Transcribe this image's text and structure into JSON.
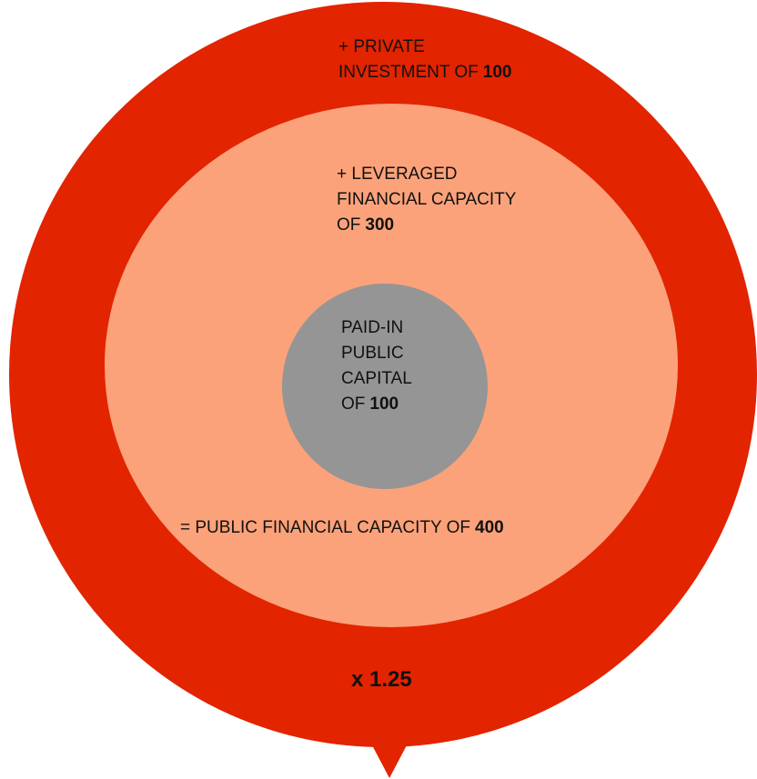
{
  "outer": {
    "lines": [
      {
        "text": "+ PRIVATE"
      },
      {
        "text": "INVESTMENT OF",
        "bold": "100"
      }
    ]
  },
  "middle": {
    "lines": [
      {
        "text": "+ LEVERAGED"
      },
      {
        "text": "FINANCIAL CAPACITY"
      },
      {
        "text": "OF",
        "bold": "300"
      }
    ]
  },
  "core": {
    "lines": [
      {
        "text": "PAID-IN"
      },
      {
        "text": "PUBLIC"
      },
      {
        "text": "CAPITAL"
      },
      {
        "text": "OF",
        "bold": "100"
      }
    ]
  },
  "total": {
    "text": "= PUBLIC FINANCIAL CAPACITY OF",
    "bold": "400"
  },
  "multiplier": "x 1.25"
}
